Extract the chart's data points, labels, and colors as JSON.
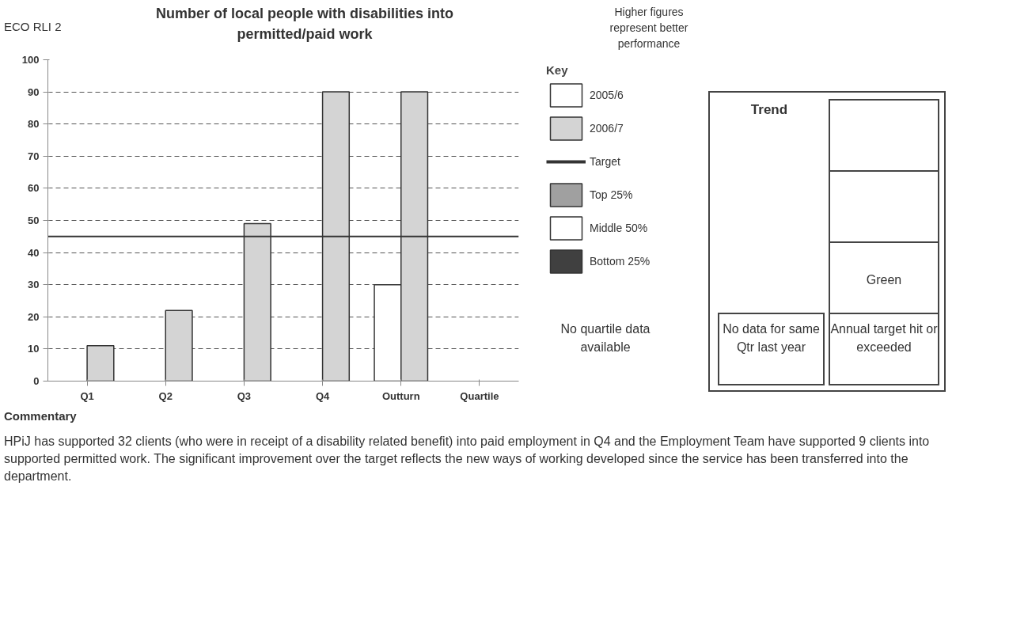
{
  "chart_data": {
    "type": "bar",
    "title": "Number of local people with disabilities into permitted/paid work",
    "categories": [
      "Q1",
      "Q2",
      "Q3",
      "Q4",
      "Outturn",
      "Quartile"
    ],
    "series": [
      {
        "name": "2005/6",
        "color": "#ffffff",
        "values": [
          null,
          null,
          null,
          null,
          30,
          null
        ]
      },
      {
        "name": "2006/7",
        "color": "#d4d4d4",
        "values": [
          11,
          22,
          49,
          90,
          90,
          null
        ]
      },
      {
        "name": "Top 25%",
        "color": "#a0a0a0",
        "values": [
          null,
          null,
          null,
          null,
          null,
          null
        ]
      },
      {
        "name": "Middle 50%",
        "color": "#ffffff",
        "values": [
          null,
          null,
          null,
          null,
          null,
          null
        ]
      },
      {
        "name": "Bottom 25%",
        "color": "#404040",
        "values": [
          null,
          null,
          null,
          null,
          null,
          null
        ]
      }
    ],
    "ref_lines": [
      {
        "axis": "y",
        "value": 45,
        "label": "Target",
        "color": "#333333"
      }
    ],
    "ylim": [
      0,
      100
    ],
    "yticks": [
      0,
      10,
      20,
      30,
      40,
      50,
      60,
      70,
      80,
      90,
      100
    ],
    "grid": "y",
    "legend": "right",
    "legend_title": "Key",
    "annotations": [
      "ECO RLI 2",
      "Higher figures represent better performance",
      "No quartile data available",
      "Trend",
      "Green",
      "No data for same Qtr last year",
      "Annual target hit or exceeded",
      "Commentary",
      "HPiJ has supported 32 clients (who were in receipt of a disability related benefit) into paid employment in Q4 and the Employment Team have supported 9 clients into supported permitted work. The significant improvement over the target reflects the new ways of working developed since the service has been transferred into the department."
    ]
  }
}
